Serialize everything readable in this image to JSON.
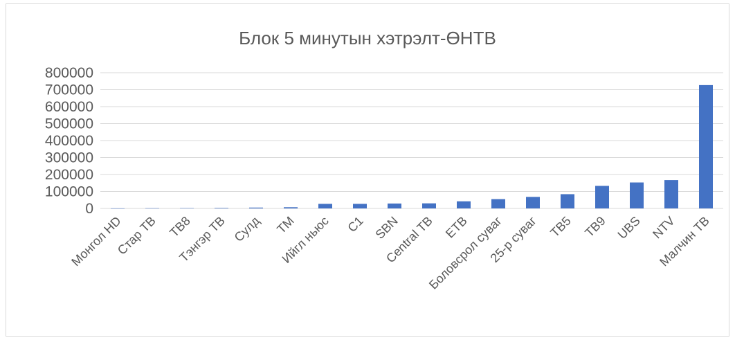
{
  "chart_data": {
    "type": "bar",
    "title": "Блок 5 минутын хэтрэлт-ӨНТВ",
    "xlabel": "",
    "ylabel": "",
    "ylim": [
      0,
      800000
    ],
    "yticks": [
      0,
      100000,
      200000,
      300000,
      400000,
      500000,
      600000,
      700000,
      800000
    ],
    "ytick_labels": [
      "0",
      "100000",
      "200000",
      "300000",
      "400000",
      "500000",
      "600000",
      "700000",
      "800000"
    ],
    "grid": true,
    "legend": "none",
    "categories": [
      "Монгол HD",
      "Стар ТВ",
      "ТВ8",
      "Тэнгэр ТВ",
      "Сулд",
      "ТМ",
      "Ийгл ньюс",
      "C1",
      "SBN",
      "Central TB",
      "ETB",
      "Боловсрол суваг",
      "25-р суваг",
      "ТВ5",
      "ТВ9",
      "UBS",
      "NTV",
      "Малчин ТВ"
    ],
    "values": [
      500,
      1500,
      2000,
      3000,
      5000,
      7000,
      27000,
      27000,
      29000,
      30000,
      42000,
      55000,
      68000,
      84000,
      133000,
      153000,
      167000,
      727000
    ],
    "colors": {
      "bar": "#4472C4",
      "grid": "#d9d9d9",
      "text": "#595959"
    }
  }
}
